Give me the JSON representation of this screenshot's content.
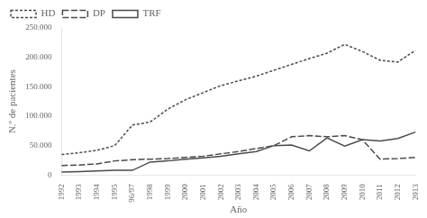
{
  "chart_data": {
    "type": "line",
    "categories": [
      "1992",
      "1993",
      "1994",
      "1995",
      "96/97",
      "1998",
      "1999",
      "2000",
      "2001",
      "2002",
      "2003",
      "2004",
      "2005",
      "2006",
      "2007",
      "2008",
      "2009",
      "2010",
      "2011",
      "2012",
      "2013"
    ],
    "series": [
      {
        "name": "HD",
        "color": "#4a4a4a",
        "line_style": "dash",
        "values": [
          35000,
          38000,
          42000,
          50000,
          85000,
          90000,
          112000,
          128000,
          140000,
          152000,
          160000,
          168000,
          178000,
          188000,
          198000,
          207000,
          222000,
          210000,
          195000,
          192000,
          212000
        ]
      },
      {
        "name": "DP",
        "color": "#4a4a4a",
        "line_style": "longdash",
        "values": [
          16000,
          17000,
          19000,
          24000,
          26000,
          27000,
          28000,
          30000,
          32000,
          36000,
          40000,
          45000,
          50000,
          65000,
          67000,
          65000,
          67000,
          60000,
          27000,
          28000,
          30000
        ]
      },
      {
        "name": "TRF",
        "color": "#4a4a4a",
        "line_style": "solid",
        "values": [
          5000,
          6000,
          7000,
          8000,
          8000,
          22000,
          24000,
          27000,
          29000,
          32000,
          36000,
          40000,
          50000,
          51000,
          41000,
          63000,
          49000,
          60000,
          58000,
          62000,
          73000
        ]
      }
    ],
    "ylim": [
      0,
      250000
    ],
    "yticks": [
      0,
      {
        "value": 50000,
        "label": "50.000"
      },
      {
        "value": 100000,
        "label": "100.000"
      },
      {
        "value": 150000,
        "label": "150.000"
      },
      {
        "value": 200000,
        "label": "200.000"
      },
      {
        "value": 250000,
        "label": "250.000"
      }
    ],
    "ylabel": "N.º de pacientes",
    "xlabel": "Año",
    "grid": false,
    "legend": "upper left"
  }
}
